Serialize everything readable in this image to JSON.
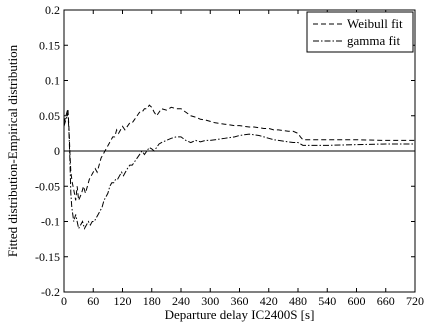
{
  "chart_data": {
    "type": "line",
    "title": "",
    "xlabel": "Departure delay IC2400S [s]",
    "ylabel": "Fitted distribution-Empirical distribution",
    "xlim": [
      0,
      720
    ],
    "ylim": [
      -0.2,
      0.2
    ],
    "x_ticks": [
      0,
      60,
      120,
      180,
      240,
      300,
      360,
      420,
      480,
      540,
      600,
      660,
      720
    ],
    "y_ticks": [
      -0.2,
      -0.15,
      -0.1,
      -0.05,
      0,
      0.05,
      0.1,
      0.15,
      0.2
    ],
    "y_tick_labels": [
      "-0.2",
      "-0.15",
      "-0.1",
      "-0.05",
      "0",
      "0.05",
      "0.1",
      "0.15",
      "0.2"
    ],
    "grid": false,
    "zero_line": true,
    "legend_position": "top-right",
    "series": [
      {
        "name": "Weibull fit",
        "style": "dashed",
        "points": [
          [
            0,
            0.04
          ],
          [
            4,
            0.05
          ],
          [
            8,
            0.06
          ],
          [
            10,
            0.035
          ],
          [
            12,
            0.0
          ],
          [
            14,
            -0.03
          ],
          [
            17,
            -0.045
          ],
          [
            20,
            -0.055
          ],
          [
            24,
            -0.07
          ],
          [
            27,
            -0.05
          ],
          [
            30,
            -0.07
          ],
          [
            33,
            -0.065
          ],
          [
            36,
            -0.06
          ],
          [
            40,
            -0.05
          ],
          [
            44,
            -0.06
          ],
          [
            48,
            -0.05
          ],
          [
            52,
            -0.04
          ],
          [
            56,
            -0.035
          ],
          [
            60,
            -0.03
          ],
          [
            64,
            -0.025
          ],
          [
            68,
            -0.03
          ],
          [
            72,
            -0.02
          ],
          [
            76,
            -0.01
          ],
          [
            80,
            -0.005
          ],
          [
            84,
            0.0
          ],
          [
            88,
            0.005
          ],
          [
            92,
            0.01
          ],
          [
            96,
            0.015
          ],
          [
            100,
            0.02
          ],
          [
            104,
            0.02
          ],
          [
            108,
            0.03
          ],
          [
            112,
            0.025
          ],
          [
            116,
            0.03
          ],
          [
            120,
            0.035
          ],
          [
            125,
            0.03
          ],
          [
            130,
            0.035
          ],
          [
            135,
            0.04
          ],
          [
            140,
            0.04
          ],
          [
            145,
            0.045
          ],
          [
            150,
            0.05
          ],
          [
            155,
            0.055
          ],
          [
            160,
            0.055
          ],
          [
            165,
            0.06
          ],
          [
            170,
            0.06
          ],
          [
            175,
            0.065
          ],
          [
            180,
            0.062
          ],
          [
            185,
            0.055
          ],
          [
            190,
            0.05
          ],
          [
            195,
            0.055
          ],
          [
            200,
            0.06
          ],
          [
            210,
            0.058
          ],
          [
            220,
            0.062
          ],
          [
            230,
            0.06
          ],
          [
            240,
            0.06
          ],
          [
            250,
            0.055
          ],
          [
            260,
            0.05
          ],
          [
            270,
            0.048
          ],
          [
            280,
            0.045
          ],
          [
            290,
            0.044
          ],
          [
            300,
            0.042
          ],
          [
            310,
            0.04
          ],
          [
            320,
            0.039
          ],
          [
            330,
            0.038
          ],
          [
            340,
            0.037
          ],
          [
            350,
            0.036
          ],
          [
            360,
            0.036
          ],
          [
            370,
            0.035
          ],
          [
            380,
            0.034
          ],
          [
            390,
            0.034
          ],
          [
            400,
            0.033
          ],
          [
            410,
            0.032
          ],
          [
            420,
            0.032
          ],
          [
            430,
            0.03
          ],
          [
            440,
            0.03
          ],
          [
            450,
            0.029
          ],
          [
            460,
            0.028
          ],
          [
            470,
            0.028
          ],
          [
            480,
            0.025
          ],
          [
            485,
            0.02
          ],
          [
            490,
            0.016
          ],
          [
            500,
            0.016
          ],
          [
            540,
            0.016
          ],
          [
            600,
            0.016
          ],
          [
            660,
            0.015
          ],
          [
            720,
            0.015
          ]
        ]
      },
      {
        "name": "gamma fit",
        "style": "dashdot",
        "points": [
          [
            0,
            0.035
          ],
          [
            4,
            0.045
          ],
          [
            8,
            0.055
          ],
          [
            10,
            0.03
          ],
          [
            12,
            -0.01
          ],
          [
            14,
            -0.06
          ],
          [
            16,
            -0.08
          ],
          [
            18,
            -0.09
          ],
          [
            20,
            -0.1
          ],
          [
            22,
            -0.095
          ],
          [
            24,
            -0.09
          ],
          [
            27,
            -0.1
          ],
          [
            30,
            -0.11
          ],
          [
            34,
            -0.105
          ],
          [
            38,
            -0.1
          ],
          [
            42,
            -0.11
          ],
          [
            46,
            -0.105
          ],
          [
            50,
            -0.1
          ],
          [
            54,
            -0.105
          ],
          [
            58,
            -0.1
          ],
          [
            62,
            -0.1
          ],
          [
            66,
            -0.095
          ],
          [
            70,
            -0.09
          ],
          [
            74,
            -0.085
          ],
          [
            78,
            -0.08
          ],
          [
            82,
            -0.07
          ],
          [
            86,
            -0.065
          ],
          [
            90,
            -0.06
          ],
          [
            94,
            -0.05
          ],
          [
            98,
            -0.045
          ],
          [
            102,
            -0.045
          ],
          [
            106,
            -0.04
          ],
          [
            110,
            -0.04
          ],
          [
            114,
            -0.035
          ],
          [
            118,
            -0.03
          ],
          [
            122,
            -0.035
          ],
          [
            126,
            -0.03
          ],
          [
            130,
            -0.025
          ],
          [
            135,
            -0.02
          ],
          [
            140,
            -0.02
          ],
          [
            145,
            -0.015
          ],
          [
            150,
            -0.01
          ],
          [
            155,
            -0.005
          ],
          [
            160,
            0.0
          ],
          [
            165,
            -0.005
          ],
          [
            170,
            0.0
          ],
          [
            175,
            0.005
          ],
          [
            180,
            0.003
          ],
          [
            185,
            0.0
          ],
          [
            190,
            0.005
          ],
          [
            195,
            0.01
          ],
          [
            200,
            0.012
          ],
          [
            210,
            0.015
          ],
          [
            220,
            0.018
          ],
          [
            230,
            0.02
          ],
          [
            240,
            0.02
          ],
          [
            250,
            0.015
          ],
          [
            260,
            0.012
          ],
          [
            270,
            0.015
          ],
          [
            280,
            0.013
          ],
          [
            290,
            0.015
          ],
          [
            300,
            0.015
          ],
          [
            310,
            0.016
          ],
          [
            320,
            0.017
          ],
          [
            330,
            0.018
          ],
          [
            340,
            0.019
          ],
          [
            350,
            0.02
          ],
          [
            360,
            0.022
          ],
          [
            370,
            0.023
          ],
          [
            380,
            0.024
          ],
          [
            390,
            0.023
          ],
          [
            400,
            0.022
          ],
          [
            410,
            0.02
          ],
          [
            420,
            0.018
          ],
          [
            430,
            0.016
          ],
          [
            440,
            0.015
          ],
          [
            450,
            0.014
          ],
          [
            460,
            0.013
          ],
          [
            470,
            0.012
          ],
          [
            480,
            0.012
          ],
          [
            485,
            0.01
          ],
          [
            490,
            0.008
          ],
          [
            500,
            0.008
          ],
          [
            540,
            0.008
          ],
          [
            600,
            0.009
          ],
          [
            660,
            0.01
          ],
          [
            720,
            0.01
          ]
        ]
      }
    ]
  }
}
